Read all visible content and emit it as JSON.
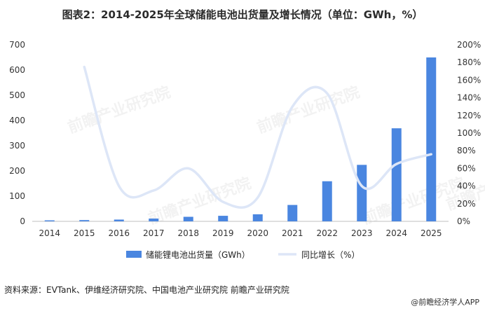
{
  "title": "图表2：2014-2025年全球储能电池出货量及增长情况（单位：GWh，%）",
  "source": "资料来源：EVTank、伊维经济研究院、中国电池产业研究院  前瞻产业研究院",
  "brand": "@前瞻经济学人APP",
  "watermark": "前瞻产业研究院",
  "colors": {
    "bar": "#4a86e0",
    "line": "#dde6f7"
  },
  "chart_data": {
    "type": "bar",
    "categories": [
      "2014",
      "2015",
      "2016",
      "2017",
      "2018",
      "2019",
      "2020",
      "2021",
      "2022",
      "2023",
      "2024",
      "2025"
    ],
    "series": [
      {
        "name": "储能锂电池出货量（GWh）",
        "type": "bar",
        "axis": "left",
        "values": [
          4,
          5,
          7,
          11,
          18,
          22,
          28,
          65,
          159,
          224,
          369,
          650
        ]
      },
      {
        "name": "同比增长（%）",
        "type": "line",
        "axis": "right",
        "smooth": true,
        "values": [
          null,
          175,
          40,
          35,
          60,
          22,
          27,
          130,
          145,
          40,
          65,
          76
        ]
      }
    ],
    "y_left": {
      "min": 0,
      "max": 700,
      "ticks": [
        "0",
        "100",
        "200",
        "300",
        "400",
        "500",
        "600",
        "700"
      ]
    },
    "y_right": {
      "min": 0,
      "max": 200,
      "ticks": [
        "0%",
        "20%",
        "40%",
        "60%",
        "80%",
        "100%",
        "120%",
        "140%",
        "160%",
        "180%",
        "200%"
      ]
    },
    "grid": false,
    "legend": "bottom"
  }
}
